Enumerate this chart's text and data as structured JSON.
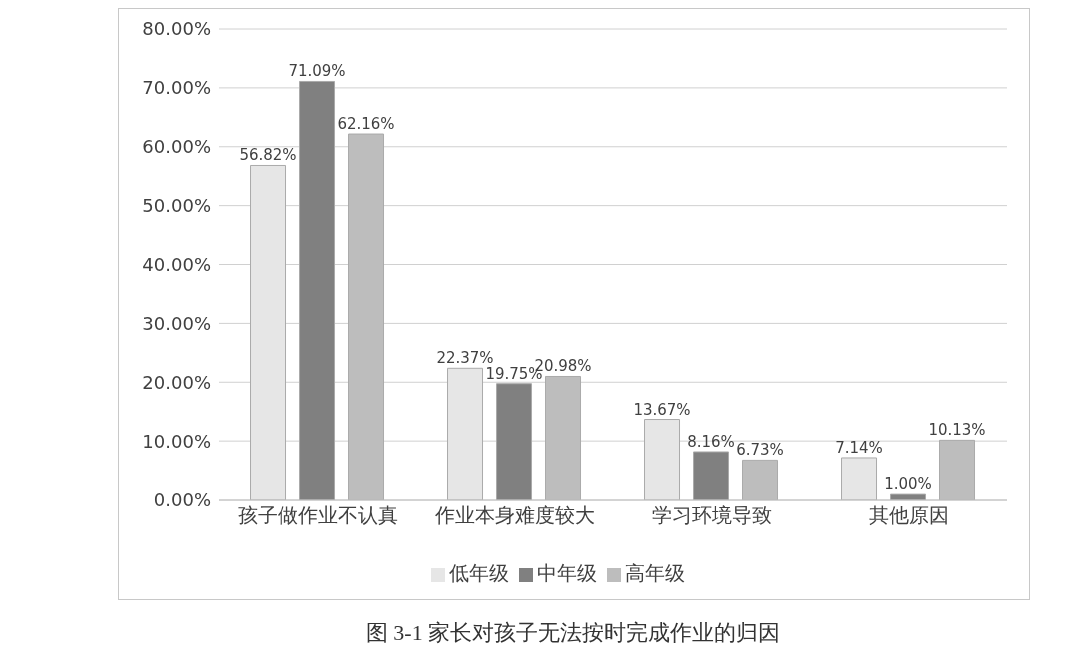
{
  "chart_data": {
    "type": "bar",
    "title": "图 3-1 家长对孩子无法按时完成作业的归因",
    "categories": [
      "孩子做作业不认真",
      "作业本身难度较大",
      "学习环境导致",
      "其他原因"
    ],
    "series": [
      {
        "name": "低年级",
        "color": "#e6e6e6",
        "values": [
          56.82,
          22.37,
          13.67,
          7.14
        ],
        "value_labels": [
          "56.82%",
          "22.37%",
          "13.67%",
          "7.14%"
        ]
      },
      {
        "name": "中年级",
        "color": "#808080",
        "values": [
          71.09,
          19.75,
          8.16,
          1.0
        ],
        "value_labels": [
          "71.09%",
          "19.75%",
          "8.16%",
          "1.00%"
        ]
      },
      {
        "name": "高年级",
        "color": "#bdbdbd",
        "values": [
          62.16,
          20.98,
          6.73,
          10.13
        ],
        "value_labels": [
          "62.16%",
          "20.98%",
          "6.73%",
          "10.13%"
        ]
      }
    ],
    "ylim": [
      0,
      80
    ],
    "yticks": [
      {
        "value": 0,
        "label": "0.00%"
      },
      {
        "value": 10,
        "label": "10.00%"
      },
      {
        "value": 20,
        "label": "20.00%"
      },
      {
        "value": 30,
        "label": "30.00%"
      },
      {
        "value": 40,
        "label": "40.00%"
      },
      {
        "value": 50,
        "label": "50.00%"
      },
      {
        "value": 60,
        "label": "60.00%"
      },
      {
        "value": 70,
        "label": "70.00%"
      },
      {
        "value": 80,
        "label": "80.00%"
      }
    ],
    "grid": "y",
    "legend": "bottom"
  }
}
